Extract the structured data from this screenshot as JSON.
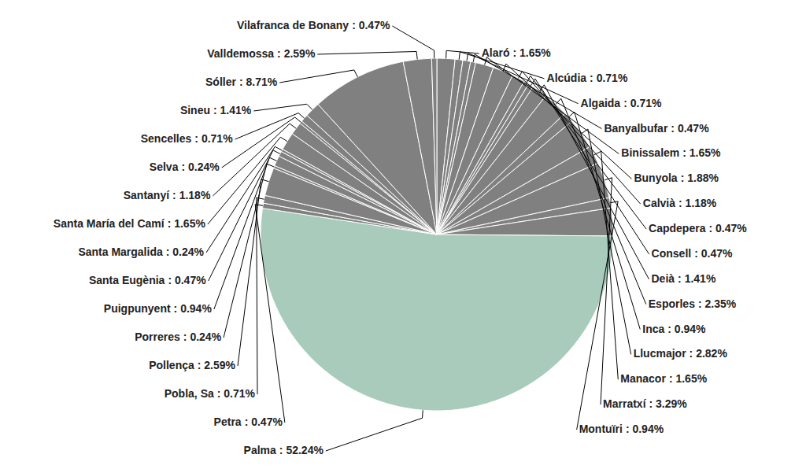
{
  "chart_data": {
    "type": "pie",
    "categories": [
      "Alaró",
      "Alcúdia",
      "Algaida",
      "Banyalbufar",
      "Binissalem",
      "Bunyola",
      "Calvià",
      "Capdepera",
      "Consell",
      "Deià",
      "Esporles",
      "Inca",
      "Llucmajor",
      "Manacor",
      "Marratxí",
      "Montuïri",
      null,
      "Palma",
      "Petra",
      "Pobla, Sa",
      "Pollença",
      "Porreres",
      "Puigpunyent",
      "Santa Eugènia",
      "Santa Margalida",
      "Santa María del Camí",
      "Santanyí",
      "Selva",
      "Sencelles",
      "Sineu",
      "Sóller",
      "Valldemossa",
      "Vilafranca de Bonany"
    ],
    "values": [
      1.65,
      0.71,
      0.71,
      0.47,
      1.65,
      1.88,
      1.18,
      0.47,
      0.47,
      1.41,
      2.35,
      0.94,
      2.82,
      1.65,
      3.29,
      0.94,
      2.55,
      52.24,
      0.47,
      0.71,
      2.59,
      0.24,
      0.94,
      0.47,
      0.24,
      1.65,
      1.18,
      0.24,
      0.71,
      1.41,
      8.71,
      2.59,
      0.47
    ],
    "value_labels": [
      ": 1.65%",
      ": 0.71%",
      ": 0.71%",
      ": 0.47%",
      ": 1.65%",
      ": 1.88%",
      ": 1.18%",
      ": 0.47%",
      ": 0.47%",
      ": 1.41%",
      ": 2.35%",
      ": 0.94%",
      ": 2.82%",
      ": 1.65%",
      ": 3.29%",
      ": 0.94%",
      null,
      ": 52.24%",
      ": 0.47%",
      ": 0.71%",
      ": 2.59%",
      ": 0.24%",
      ": 0.94%",
      ": 0.47%",
      ": 0.24%",
      ": 1.65%",
      ": 1.18%",
      ": 0.24%",
      ": 0.71%",
      ": 1.41%",
      ": 8.71%",
      ": 2.59%",
      ": 0.47%"
    ],
    "colors": [
      "#808080",
      "#808080",
      "#808080",
      "#808080",
      "#808080",
      "#808080",
      "#808080",
      "#808080",
      "#808080",
      "#808080",
      "#808080",
      "#808080",
      "#808080",
      "#808080",
      "#808080",
      "#808080",
      "#808080",
      "#a8cbbb",
      "#808080",
      "#808080",
      "#808080",
      "#808080",
      "#808080",
      "#808080",
      "#808080",
      "#808080",
      "#808080",
      "#808080",
      "#808080",
      "#808080",
      "#808080",
      "#808080",
      "#808080"
    ],
    "data_labels": true
  }
}
